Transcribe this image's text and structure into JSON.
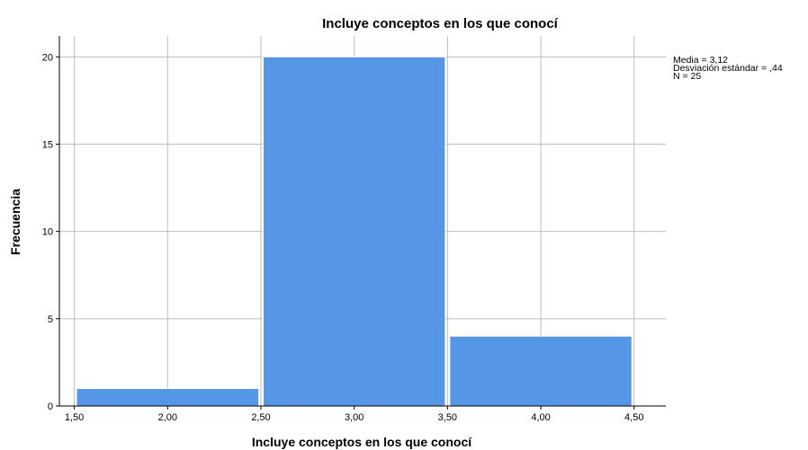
{
  "chart_data": {
    "type": "bar",
    "title": "Incluye conceptos en los que conocí",
    "xlabel": "Incluye conceptos en los que conocí",
    "ylabel": "Frecuencia",
    "bins": [
      {
        "start": 1.5,
        "end": 2.5,
        "count": 1
      },
      {
        "start": 2.5,
        "end": 3.5,
        "count": 20
      },
      {
        "start": 3.5,
        "end": 4.5,
        "count": 4
      }
    ],
    "x_ticks": [
      "1,50",
      "2,00",
      "2,50",
      "3,00",
      "3,50",
      "4,00",
      "4,50"
    ],
    "x_tick_values": [
      1.5,
      2.0,
      2.5,
      3.0,
      3.5,
      4.0,
      4.5
    ],
    "y_ticks": [
      "0",
      "5",
      "10",
      "15",
      "20"
    ],
    "y_tick_values": [
      0,
      5,
      10,
      15,
      20
    ],
    "xlim": [
      1.42,
      4.67
    ],
    "ylim": [
      0,
      21.2
    ],
    "grid": true,
    "bar_color": "#5596e6",
    "stats": {
      "mean": "Media = 3,12",
      "std": "Desviación estándar = ,44",
      "n": "N = 25"
    },
    "legend_position": "right"
  }
}
